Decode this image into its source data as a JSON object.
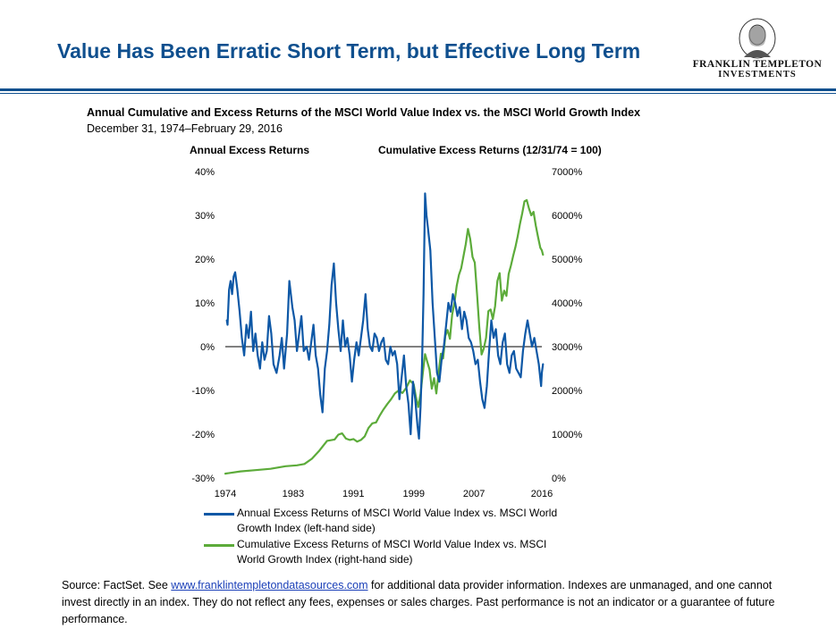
{
  "header": {
    "title": "Value Has Been Erratic Short Term, but Effective Long Term",
    "logo_line1": "FRANKLIN TEMPLETON",
    "logo_line2": "INVESTMENTS"
  },
  "colors": {
    "brand_blue": "#0f4f8e",
    "annual_series": "#0e58a6",
    "cumulative_series": "#5cab3a"
  },
  "chart_data": {
    "type": "line",
    "title": "Annual Cumulative and Excess Returns of the MSCI World Value Index vs. the MSCI World Growth  Index",
    "subtitle": "December 31, 1974–February 29, 2016",
    "left_axis_title": "Annual Excess Returns",
    "right_axis_title": "Cumulative Excess Returns (12/31/74 = 100)",
    "x_ticks": [
      "1974",
      "1983",
      "1991",
      "1999",
      "2007",
      "2016"
    ],
    "x_tick_values": [
      1974,
      1983,
      1991,
      1999,
      2007,
      2016
    ],
    "y_left_ticks": [
      "40%",
      "30%",
      "20%",
      "10%",
      "0%",
      "-10%",
      "-20%",
      "-30%"
    ],
    "y_left_values": [
      40,
      30,
      20,
      10,
      0,
      -10,
      -20,
      -30
    ],
    "y_right_ticks": [
      "7000%",
      "6000%",
      "5000%",
      "4000%",
      "3000%",
      "2000%",
      "1000%",
      "0%"
    ],
    "y_right_values": [
      7000,
      6000,
      5000,
      4000,
      3000,
      2000,
      1000,
      0
    ],
    "xlim": [
      1974,
      2016
    ],
    "ylim_left": [
      -30,
      40
    ],
    "ylim_right": [
      0,
      7000
    ],
    "grid": false,
    "zero_line": true,
    "legend_position": "bottom",
    "series": [
      {
        "name": "Annual Excess Returns of MSCI World Value Index vs. MSCI World Growth Index (left-hand side)",
        "axis": "left",
        "x": [
          1974.2,
          1974.3,
          1974.5,
          1974.7,
          1974.9,
          1975.1,
          1975.3,
          1975.6,
          1975.9,
          1976.2,
          1976.5,
          1976.8,
          1977.1,
          1977.4,
          1977.7,
          1978.0,
          1978.3,
          1978.6,
          1978.9,
          1979.2,
          1979.5,
          1979.8,
          1980.1,
          1980.4,
          1980.8,
          1981.2,
          1981.5,
          1981.8,
          1982.2,
          1982.5,
          1982.9,
          1983.2,
          1983.5,
          1983.8,
          1984.1,
          1984.4,
          1984.8,
          1985.1,
          1985.4,
          1985.7,
          1986.0,
          1986.3,
          1986.6,
          1986.9,
          1987.2,
          1987.5,
          1987.8,
          1988.1,
          1988.4,
          1988.7,
          1989.0,
          1989.3,
          1989.6,
          1989.9,
          1990.2,
          1990.5,
          1990.8,
          1991.1,
          1991.4,
          1991.7,
          1992.0,
          1992.3,
          1992.6,
          1992.9,
          1993.2,
          1993.5,
          1993.8,
          1994.1,
          1994.4,
          1994.7,
          1995.0,
          1995.3,
          1995.6,
          1995.9,
          1996.2,
          1996.5,
          1996.8,
          1997.1,
          1997.4,
          1997.7,
          1998.0,
          1998.3,
          1998.6,
          1998.9,
          1999.2,
          1999.5,
          1999.7,
          1999.9,
          2000.1,
          2000.3,
          2000.5,
          2000.7,
          2000.9,
          2001.2,
          2001.5,
          2001.8,
          2002.1,
          2002.4,
          2002.7,
          2003.0,
          2003.3,
          2003.6,
          2003.9,
          2004.2,
          2004.5,
          2004.8,
          2005.1,
          2005.4,
          2005.7,
          2006.0,
          2006.3,
          2006.6,
          2006.9,
          2007.2,
          2007.5,
          2007.8,
          2008.1,
          2008.4,
          2008.7,
          2009.0,
          2009.3,
          2009.6,
          2009.9,
          2010.2,
          2010.5,
          2010.8,
          2011.1,
          2011.4,
          2011.7,
          2012.0,
          2012.3,
          2012.6,
          2012.9,
          2013.2,
          2013.5,
          2013.8,
          2014.1,
          2014.4,
          2014.7,
          2015.0,
          2015.3,
          2015.6,
          2015.9,
          2016.0,
          2016.15
        ],
        "y": [
          6.0,
          5.0,
          13.0,
          15.0,
          12.0,
          16.0,
          17.0,
          13.0,
          8.0,
          2.0,
          -2.0,
          5.0,
          2.0,
          8.0,
          -1.0,
          3.0,
          -2.0,
          -5.0,
          1.0,
          -3.0,
          -1.0,
          7.0,
          3.0,
          -4.0,
          -6.0,
          -2.0,
          2.0,
          -5.0,
          3.0,
          15.0,
          9.0,
          6.0,
          -1.0,
          3.0,
          7.0,
          -1.0,
          0.0,
          -3.0,
          1.0,
          5.0,
          -2.0,
          -5.0,
          -11.0,
          -15.0,
          -5.0,
          -1.0,
          5.0,
          14.0,
          19.0,
          10.0,
          4.0,
          -1.0,
          6.0,
          0.0,
          2.0,
          -2.0,
          -8.0,
          -3.0,
          1.0,
          -2.0,
          2.0,
          6.0,
          12.0,
          4.0,
          0.0,
          -1.0,
          3.0,
          2.0,
          -1.0,
          1.0,
          2.0,
          -3.0,
          -4.0,
          0.0,
          -2.0,
          -1.0,
          -4.0,
          -12.0,
          -7.0,
          -2.0,
          -9.0,
          -13.0,
          -20.0,
          -8.0,
          -12.0,
          -18.0,
          -21.0,
          -14.0,
          -4.0,
          12.0,
          35.0,
          30.0,
          27.0,
          22.0,
          10.0,
          2.0,
          -6.0,
          -8.0,
          -3.0,
          0.0,
          5.0,
          10.0,
          8.0,
          12.0,
          10.0,
          7.0,
          9.0,
          4.0,
          8.0,
          6.0,
          2.0,
          1.0,
          -1.0,
          -4.0,
          -3.0,
          -8.0,
          -12.0,
          -14.0,
          -9.0,
          -1.0,
          6.0,
          2.0,
          4.0,
          -2.0,
          -4.0,
          1.0,
          3.0,
          -4.0,
          -6.0,
          -2.0,
          -1.0,
          -5.0,
          -6.0,
          -7.0,
          -1.0,
          3.0,
          6.0,
          3.0,
          0.0,
          2.0,
          -1.0,
          -4.0,
          -9.0,
          -6.0,
          -4.0
        ],
        "color": "#0e58a6"
      },
      {
        "name": "Cumulative Excess Returns of MSCI World Value Index vs. MSCI World Growth Index (right-hand side)",
        "axis": "right",
        "x": [
          1974.0,
          1976.0,
          1978.0,
          1980.0,
          1982.0,
          1983.5,
          1984.5,
          1985.5,
          1986.5,
          1987.5,
          1988.5,
          1989.0,
          1989.5,
          1990.0,
          1990.5,
          1991.0,
          1991.5,
          1992.0,
          1992.5,
          1993.0,
          1993.5,
          1994.0,
          1994.5,
          1995.0,
          1995.5,
          1996.0,
          1996.5,
          1997.0,
          1997.5,
          1998.0,
          1998.5,
          1999.0,
          1999.3,
          1999.6,
          1999.9,
          2000.2,
          2000.5,
          2000.8,
          2001.1,
          2001.4,
          2001.7,
          2002.0,
          2002.3,
          2002.6,
          2002.9,
          2003.2,
          2003.5,
          2003.8,
          2004.1,
          2004.4,
          2004.7,
          2005.0,
          2005.3,
          2005.6,
          2005.9,
          2006.2,
          2006.5,
          2006.8,
          2007.1,
          2007.4,
          2007.7,
          2008.0,
          2008.3,
          2008.6,
          2008.9,
          2009.2,
          2009.5,
          2009.8,
          2010.1,
          2010.4,
          2010.7,
          2011.0,
          2011.3,
          2011.6,
          2011.9,
          2012.2,
          2012.5,
          2012.8,
          2013.1,
          2013.4,
          2013.7,
          2014.0,
          2014.3,
          2014.6,
          2014.9,
          2015.2,
          2015.5,
          2015.8,
          2016.0,
          2016.15
        ],
        "y": [
          100,
          150,
          180,
          210,
          270,
          290,
          320,
          440,
          630,
          850,
          880,
          990,
          1020,
          900,
          870,
          890,
          830,
          870,
          950,
          1140,
          1250,
          1270,
          1430,
          1570,
          1690,
          1800,
          1930,
          2000,
          1940,
          2060,
          2230,
          2140,
          1850,
          1620,
          1920,
          2380,
          2830,
          2650,
          2480,
          2040,
          2280,
          1930,
          2390,
          2840,
          2730,
          3250,
          3380,
          3180,
          3730,
          3990,
          4390,
          4640,
          4790,
          5060,
          5340,
          5690,
          5460,
          5050,
          4920,
          4220,
          3460,
          2820,
          2960,
          3200,
          3810,
          3850,
          3630,
          3920,
          4500,
          4680,
          4050,
          4280,
          4160,
          4660,
          4850,
          5080,
          5280,
          5520,
          5810,
          6050,
          6320,
          6350,
          6150,
          6000,
          6080,
          5760,
          5500,
          5260,
          5200,
          5100
        ],
        "color": "#5cab3a"
      }
    ]
  },
  "legend": {
    "item1": "Annual Excess Returns of MSCI World Value Index vs. MSCI World Growth Index (left-hand side)",
    "item2": "Cumulative Excess Returns of MSCI World Value Index vs. MSCI World Growth Index (right-hand side)"
  },
  "footer": {
    "source_prefix": "Source: FactSet. See ",
    "source_link": "www.franklintempletondatasources.com",
    "source_suffix": " for additional data provider information. Indexes are unmanaged, and one cannot invest directly in an index. They do not reflect any fees, expenses or sales charges. Past performance is not an indicator or a guarantee of future performance."
  }
}
